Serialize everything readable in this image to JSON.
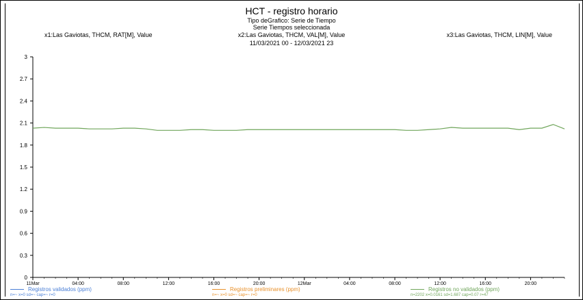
{
  "chart_data": {
    "type": "line",
    "title": "HCT - registro horario",
    "subtitle_lines": [
      "Tipo deGrafico: Serie de Tiempo",
      "Serie Tiempos seleccionada"
    ],
    "range_label": "11/03/2021 00 - 12/03/2021 23",
    "series_labels": {
      "s1": "x1:Las Gaviotas, THCM, RAT[M], Value",
      "s2": "x2:Las Gaviotas, THCM, VAL[M], Value",
      "s3": "x3:Las Gaviotas, THCM, LIN[M], Value"
    },
    "y_ticks": [
      "3",
      "2.7",
      "2.4",
      "2.1",
      "1.8",
      "1.5",
      "1.2",
      "0.9",
      "0.6",
      "0.3",
      "0"
    ],
    "ylim": [
      0,
      3
    ],
    "x_tick_labels": [
      "11Mar",
      "04:00",
      "08:00",
      "12:00",
      "16:00",
      "20:00",
      "12Mar",
      "04:00",
      "08:00",
      "12:00",
      "16:00",
      "20:00"
    ],
    "x_hours_range": [
      0,
      47
    ],
    "series": [
      {
        "name": "Registros no validados (ppm)",
        "color": "#6fa55a",
        "values": [
          2.03,
          2.04,
          2.03,
          2.03,
          2.03,
          2.02,
          2.02,
          2.02,
          2.03,
          2.03,
          2.02,
          2.0,
          2.0,
          2.0,
          2.01,
          2.01,
          2.0,
          2.0,
          2.0,
          2.01,
          2.01,
          2.01,
          2.01,
          2.01,
          2.01,
          2.01,
          2.01,
          2.01,
          2.01,
          2.01,
          2.01,
          2.01,
          2.01,
          2.0,
          2.0,
          2.01,
          2.02,
          2.04,
          2.03,
          2.03,
          2.03,
          2.03,
          2.03,
          2.01,
          2.03,
          2.03,
          2.08,
          2.02
        ]
      }
    ],
    "legend": [
      {
        "label": "Registros validados (ppm)",
        "sub": "n=~ x=0 sd=~ cap=~ r=0"
      },
      {
        "label": "Registros preliminares (ppm)",
        "sub": "n=~ x=0 sd=~ cap=~ r=0"
      },
      {
        "label": "Registros no validados (ppm)",
        "sub": "n=2202 x=0.0161 sd=1.687 cap=0.07 r=47"
      }
    ]
  }
}
